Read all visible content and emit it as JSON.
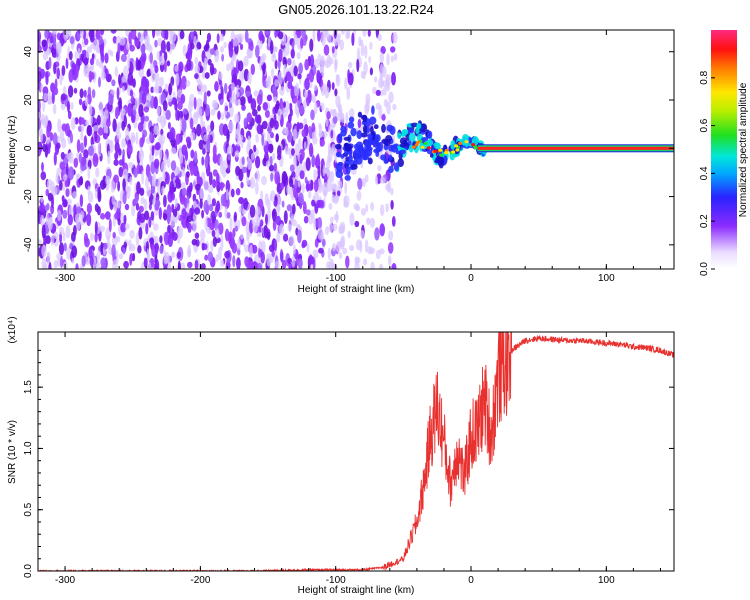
{
  "title": "GN05.2026.101.13.22.R24",
  "chart_data": [
    {
      "type": "heatmap",
      "title": "GN05.2026.101.13.22.R24",
      "xlabel": "Height of straight line (km)",
      "ylabel": "Frequency (Hz)",
      "xlim": [
        -320,
        150
      ],
      "ylim": [
        -50,
        49
      ],
      "xticks": [
        "-300",
        "-200",
        "-100",
        "0",
        "100"
      ],
      "yticks": [
        "-40",
        "-20",
        "0",
        "20",
        "40"
      ],
      "colorbar": {
        "label": "Normalized spectral amplitude",
        "range": [
          0.0,
          1.0
        ],
        "ticks": [
          "0.0",
          "0.2",
          "0.4",
          "0.6",
          "0.8"
        ],
        "colormap": "rainbow (white-violet-blue-cyan-green-yellow-red-magenta)"
      },
      "features": {
        "noise_region_x": [
          -320,
          -65
        ],
        "signal_onset_x": -70,
        "narrowband_frequency_hz": 0,
        "narrowband_x": [
          5,
          150
        ]
      }
    },
    {
      "type": "line",
      "xlabel": "Height of straight line (km)",
      "ylabel": "SNR (10 * v/v)",
      "multiplier": "(x10⁴)",
      "xlim": [
        -320,
        150
      ],
      "ylim": [
        0,
        1.95
      ],
      "xticks": [
        "-300",
        "-200",
        "-100",
        "0",
        "100"
      ],
      "yticks": [
        "0.0",
        "0.5",
        "1.0",
        "1.5"
      ],
      "grid": false,
      "series": [
        {
          "color": "#e8302e",
          "x": [
            -320,
            -280,
            -240,
            -200,
            -160,
            -120,
            -100,
            -80,
            -65,
            -50,
            -40,
            -35,
            -30,
            -25,
            -20,
            -15,
            -10,
            -5,
            0,
            5,
            10,
            15,
            20,
            30,
            40,
            50,
            60,
            70,
            80,
            90,
            100,
            110,
            120,
            130,
            140,
            150
          ],
          "y": [
            0.0,
            0.0,
            0.0,
            0.0,
            0.0,
            0.01,
            0.01,
            0.01,
            0.03,
            0.1,
            0.4,
            0.7,
            1.1,
            1.35,
            1.05,
            0.7,
            1.0,
            0.75,
            1.1,
            1.15,
            1.4,
            1.1,
            1.6,
            1.8,
            1.88,
            1.9,
            1.89,
            1.88,
            1.88,
            1.87,
            1.86,
            1.85,
            1.83,
            1.82,
            1.8,
            1.76
          ]
        }
      ]
    }
  ]
}
